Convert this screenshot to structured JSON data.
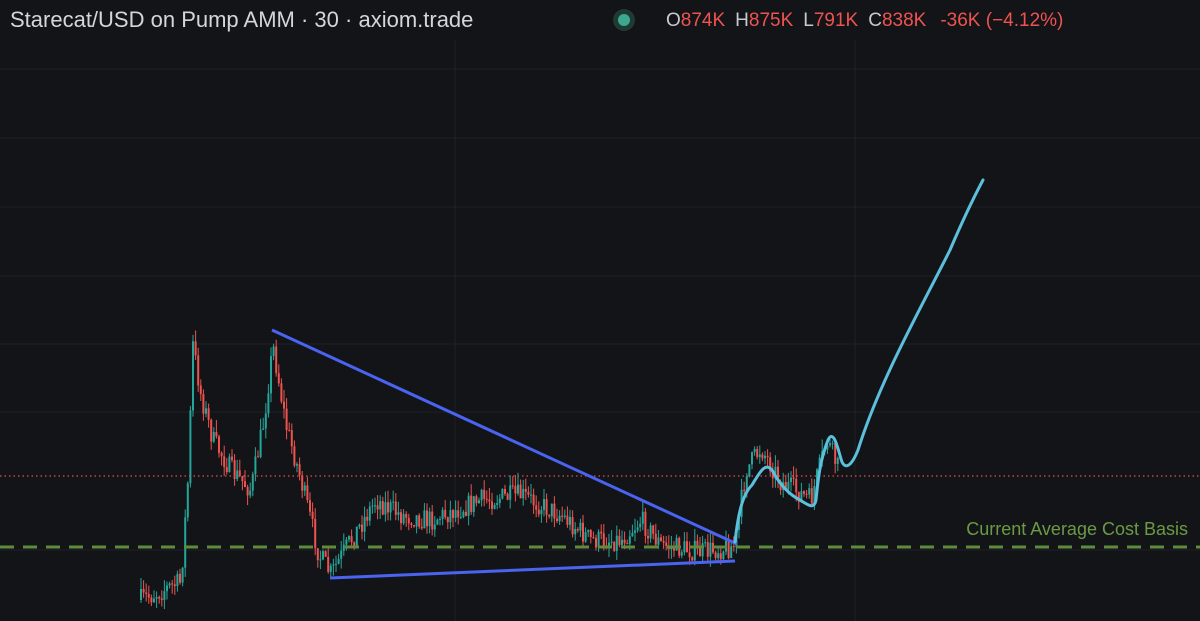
{
  "header": {
    "title": "Starecat/USD on Pump AMM · 30 · axiom.trade",
    "ohlc": [
      {
        "label": "O",
        "value": "874K"
      },
      {
        "label": "H",
        "value": "875K"
      },
      {
        "label": "L",
        "value": "791K"
      },
      {
        "label": "C",
        "value": "838K"
      }
    ],
    "change": "-36K (−4.12%)"
  },
  "annotations": {
    "cost_basis": "Current Average Cost Basis"
  }
}
